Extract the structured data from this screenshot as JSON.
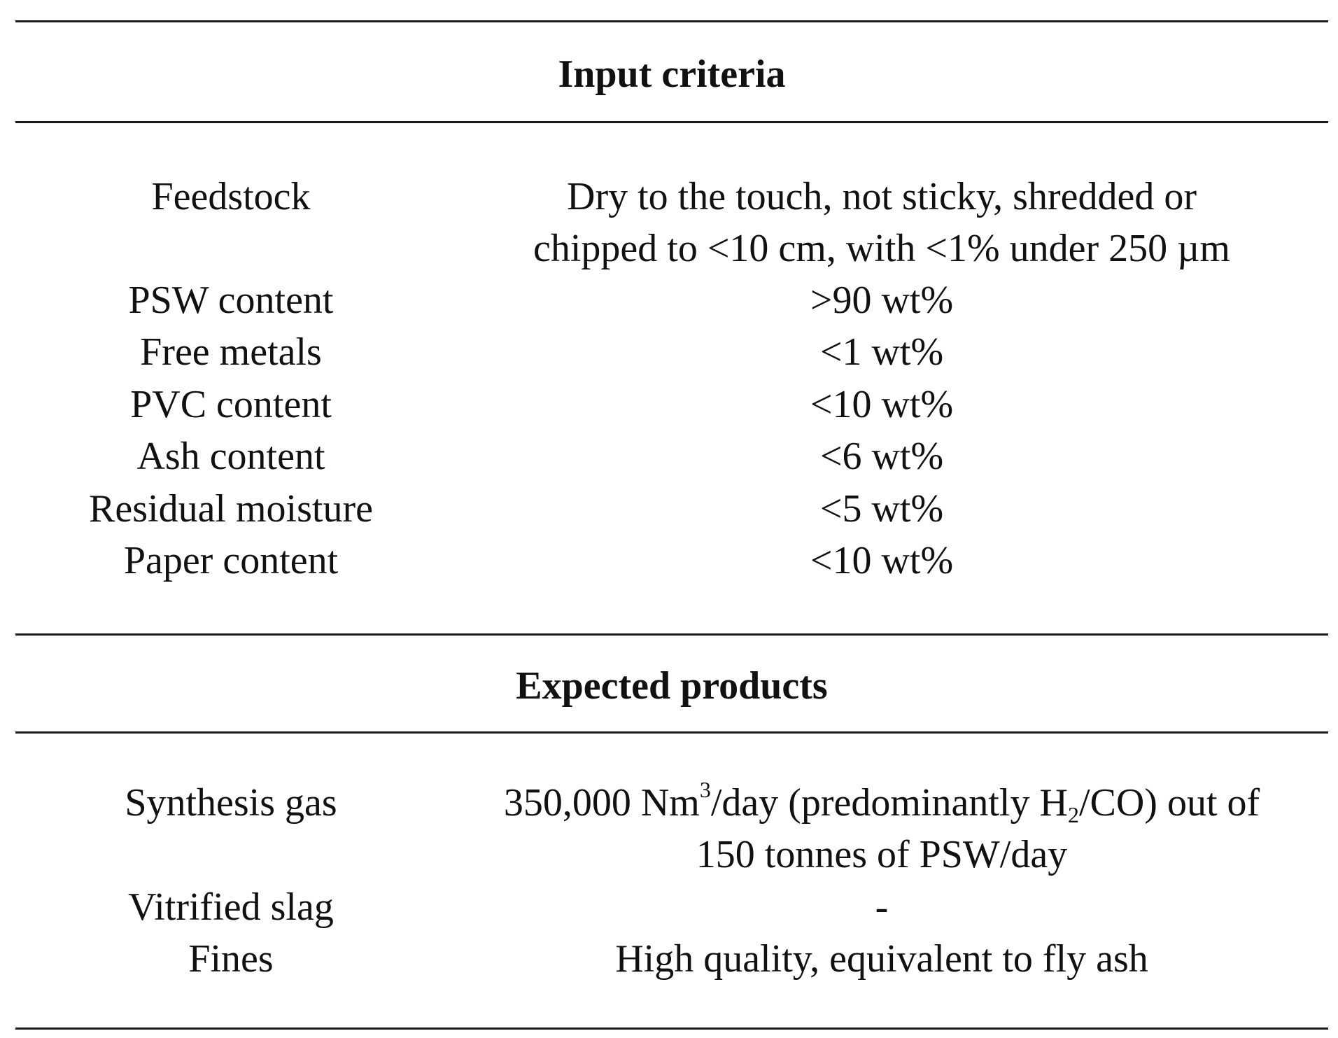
{
  "sections": {
    "input": {
      "title": "Input criteria",
      "rows": [
        {
          "label": "Feedstock",
          "value_line1": "Dry to the touch, not sticky, shredded or",
          "value_line2": "chipped to <10 cm, with <1% under 250 µm"
        },
        {
          "label": "PSW content",
          "value": ">90 wt%"
        },
        {
          "label": "Free metals",
          "value": "<1 wt%"
        },
        {
          "label": "PVC content",
          "value": "<10 wt%"
        },
        {
          "label": "Ash content",
          "value": "<6 wt%"
        },
        {
          "label": "Residual moisture",
          "value": "<5 wt%"
        },
        {
          "label": "Paper content",
          "value": "<10 wt%"
        }
      ]
    },
    "products": {
      "title": "Expected products",
      "rows": [
        {
          "label": "Synthesis gas",
          "value_line1_parts": {
            "a": "350,000 Nm",
            "sup": "3",
            "b": "/day (predominantly H",
            "sub": "2",
            "c": "/CO) out of"
          },
          "value_line2": "150 tonnes of PSW/day"
        },
        {
          "label": "Vitrified slag",
          "value": "-"
        },
        {
          "label": "Fines",
          "value": "High quality, equivalent to fly ash"
        }
      ]
    }
  }
}
